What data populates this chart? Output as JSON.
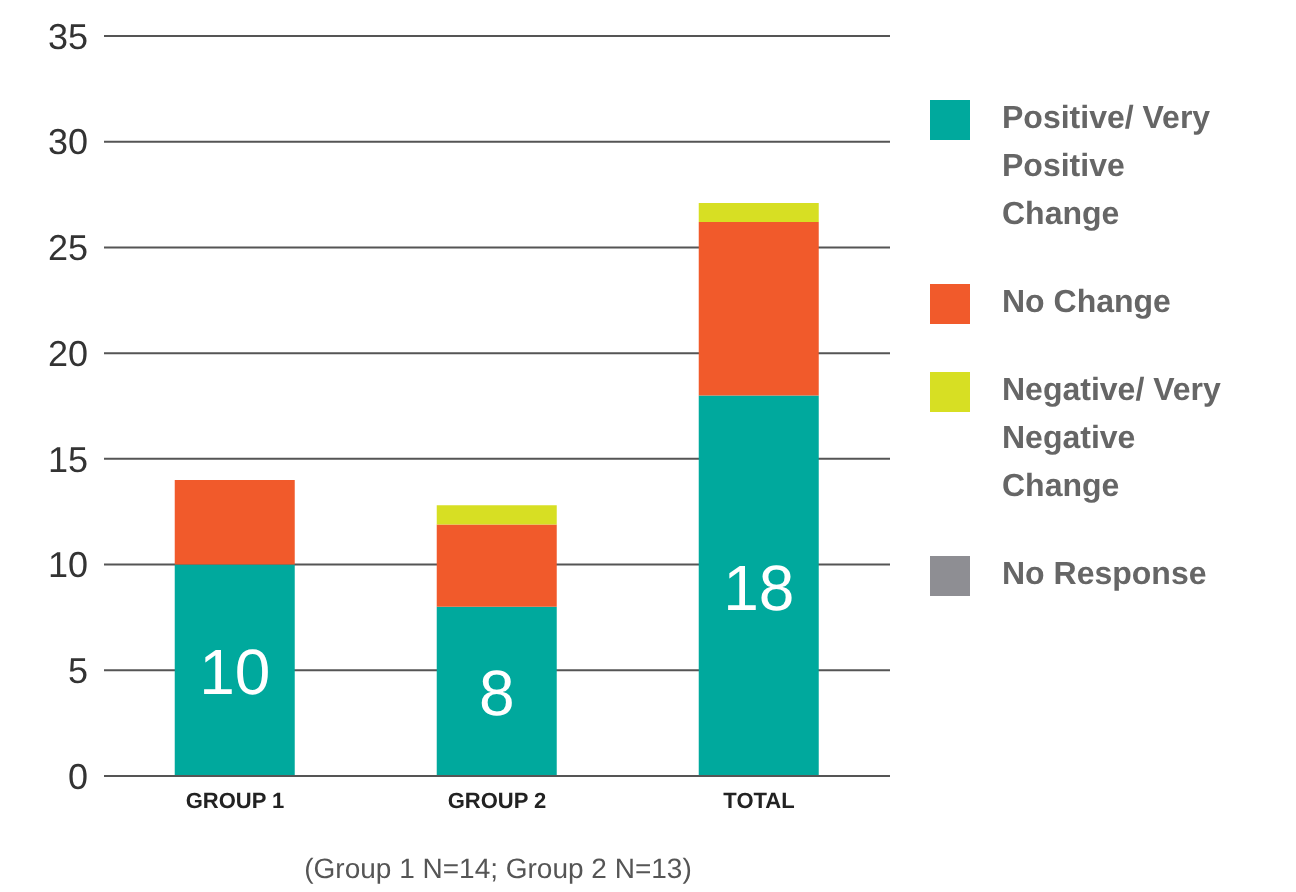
{
  "chart_data": {
    "type": "bar",
    "stacked": true,
    "categories": [
      "GROUP 1",
      "GROUP 2",
      "TOTAL"
    ],
    "series": [
      {
        "name": "Positive/ Very Positive Change",
        "color": "#00a99d",
        "values": [
          10,
          8,
          18
        ],
        "value_labels": [
          "10",
          "8",
          "18"
        ]
      },
      {
        "name": "No Change",
        "color": "#f15a2b",
        "values": [
          4,
          3.9,
          8.2
        ]
      },
      {
        "name": "Negative/ Very Negative Change",
        "color": "#d7df23",
        "values": [
          null,
          0.9,
          0.9
        ]
      },
      {
        "name": "No Response",
        "color": "#8e8e93",
        "values": [
          null,
          null,
          null
        ]
      }
    ],
    "ylim": [
      0,
      35
    ],
    "yticks": [
      0,
      5,
      10,
      15,
      20,
      25,
      30,
      35
    ],
    "grid": "y",
    "legend": "right",
    "annotations": [
      "(Group 1 N=14; Group 2 N=13)"
    ]
  }
}
